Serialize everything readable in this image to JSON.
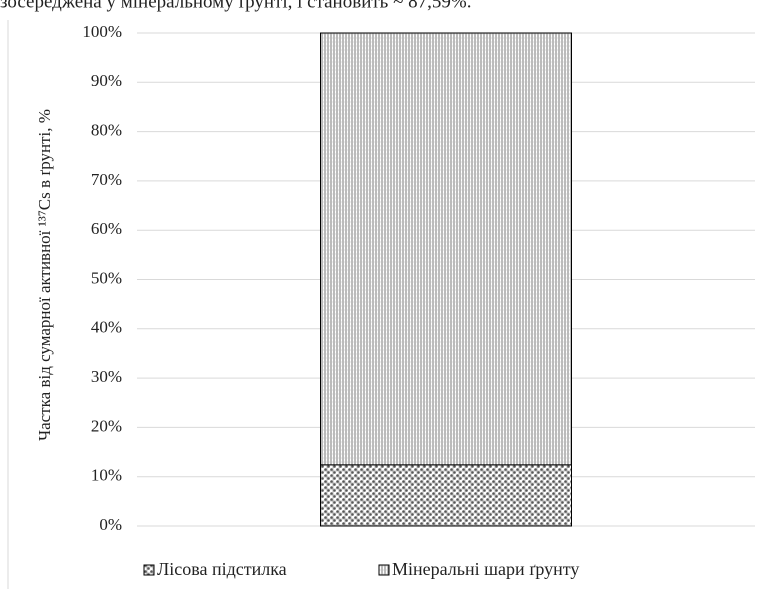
{
  "text_above": "зосереджена у мінеральному ґрунті, і становить ~ 87,59%.",
  "chart_data": {
    "type": "stacked_bar",
    "y_label": "Частка від сумарної активної ¹³⁷Cs в ґрунті, %",
    "categories": [
      null
    ],
    "series": [
      {
        "name": "Лісова підстилка",
        "color": "#555555",
        "values": [
          12.41
        ]
      },
      {
        "name": "Мінеральні шари ґрунту",
        "color": "#777777",
        "values": [
          87.59
        ]
      }
    ],
    "ylim": [
      0,
      100
    ],
    "yticks": [
      {
        "value": 0,
        "label": "0%"
      },
      {
        "value": 10,
        "label": "10%"
      },
      {
        "value": 20,
        "label": "20%"
      },
      {
        "value": 30,
        "label": "30%"
      },
      {
        "value": 40,
        "label": "40%"
      },
      {
        "value": 50,
        "label": "50%"
      },
      {
        "value": 60,
        "label": "60%"
      },
      {
        "value": 70,
        "label": "70%"
      },
      {
        "value": 80,
        "label": "80%"
      },
      {
        "value": 90,
        "label": "90%"
      },
      {
        "value": 100,
        "label": "100%"
      }
    ],
    "grid": true,
    "legend": "bottom"
  }
}
